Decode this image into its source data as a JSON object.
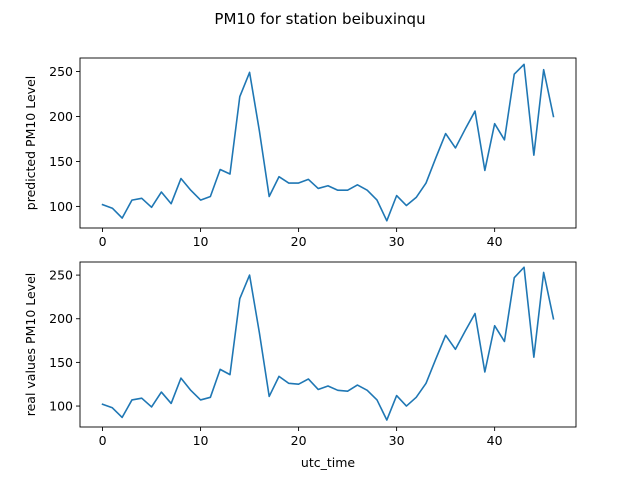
{
  "figure_title": "PM10 for station beibuxinqu",
  "chart_data": [
    {
      "type": "line",
      "title": "",
      "xlabel": "",
      "ylabel": "predicted PM10 Level",
      "xlim": [
        -2.3,
        48.3
      ],
      "ylim": [
        76,
        265
      ],
      "xticks": [
        0,
        10,
        20,
        30,
        40
      ],
      "yticks": [
        100,
        150,
        200,
        250
      ],
      "grid": false,
      "color": "#1f77b4",
      "series": [
        {
          "x": [
            0,
            1,
            2,
            3,
            4,
            5,
            6,
            7,
            8,
            9,
            10,
            11,
            12,
            13,
            14,
            15,
            16,
            17,
            18,
            19,
            20,
            21,
            22,
            23,
            24,
            25,
            26,
            27,
            28,
            29,
            30,
            31,
            32,
            33,
            34,
            35,
            36,
            37,
            38,
            39,
            40,
            41,
            42,
            43,
            44,
            45,
            46
          ],
          "values": [
            102,
            98,
            87,
            107,
            109,
            99,
            116,
            103,
            131,
            118,
            107,
            111,
            141,
            136,
            222,
            249,
            184,
            111,
            133,
            126,
            126,
            130,
            120,
            123,
            118,
            118,
            124,
            118,
            107,
            84,
            112,
            101,
            110,
            126,
            154,
            181,
            165,
            186,
            206,
            140,
            192,
            174,
            247,
            258,
            157,
            252,
            200
          ]
        }
      ]
    },
    {
      "type": "line",
      "title": "",
      "xlabel": "utc_time",
      "ylabel": "real values PM10 Level",
      "xlim": [
        -2.3,
        48.3
      ],
      "ylim": [
        76,
        265
      ],
      "xticks": [
        0,
        10,
        20,
        30,
        40
      ],
      "yticks": [
        100,
        150,
        200,
        250
      ],
      "grid": false,
      "color": "#1f77b4",
      "series": [
        {
          "x": [
            0,
            1,
            2,
            3,
            4,
            5,
            6,
            7,
            8,
            9,
            10,
            11,
            12,
            13,
            14,
            15,
            16,
            17,
            18,
            19,
            20,
            21,
            22,
            23,
            24,
            25,
            26,
            27,
            28,
            29,
            30,
            31,
            32,
            33,
            34,
            35,
            36,
            37,
            38,
            39,
            40,
            41,
            42,
            43,
            44,
            45,
            46
          ],
          "values": [
            102,
            98,
            87,
            107,
            109,
            99,
            116,
            103,
            132,
            118,
            107,
            110,
            142,
            136,
            223,
            250,
            184,
            111,
            134,
            126,
            125,
            131,
            119,
            123,
            118,
            117,
            124,
            118,
            107,
            84,
            112,
            100,
            110,
            126,
            154,
            181,
            165,
            186,
            206,
            139,
            192,
            174,
            247,
            259,
            156,
            253,
            200
          ]
        }
      ]
    }
  ]
}
